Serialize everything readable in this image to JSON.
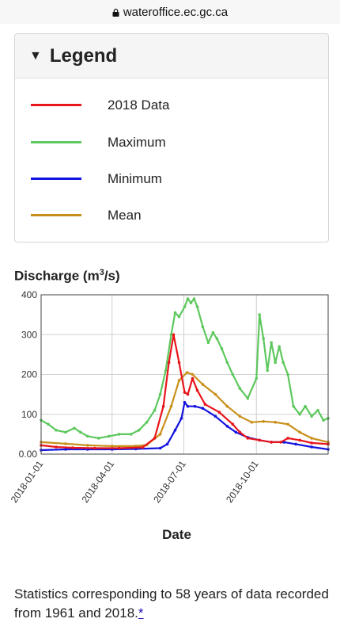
{
  "browser": {
    "url": "wateroffice.ec.gc.ca"
  },
  "legend": {
    "title": "Legend",
    "items": [
      {
        "label": "2018 Data",
        "color": "#e8151b"
      },
      {
        "label": "Maximum",
        "color": "#5dc85d"
      },
      {
        "label": "Minimum",
        "color": "#1414e0"
      },
      {
        "label": "Mean",
        "color": "#c8901a"
      }
    ]
  },
  "chart": {
    "title_prefix": "Discharge (m",
    "title_sup": "3",
    "title_suffix": "/s)",
    "xlabel": "Date"
  },
  "chart_data": {
    "type": "line",
    "title": "Discharge (m3/s)",
    "xlabel": "Date",
    "ylabel": "",
    "ylim": [
      0,
      400
    ],
    "x_range": [
      "2018-01-01",
      "2018-12-31"
    ],
    "yticks": [
      "0.00",
      "100",
      "200",
      "300",
      "400"
    ],
    "xticks": [
      "2018-01-01",
      "2018-04-01",
      "2018-07-01",
      "2018-10-01"
    ],
    "grid": true,
    "series": [
      {
        "name": "Maximum",
        "color": "#5dc85d",
        "points": [
          [
            "2018-01-01",
            85
          ],
          [
            "2018-01-10",
            75
          ],
          [
            "2018-01-20",
            60
          ],
          [
            "2018-02-01",
            55
          ],
          [
            "2018-02-12",
            65
          ],
          [
            "2018-02-20",
            55
          ],
          [
            "2018-03-01",
            45
          ],
          [
            "2018-03-15",
            40
          ],
          [
            "2018-03-28",
            45
          ],
          [
            "2018-04-10",
            50
          ],
          [
            "2018-04-25",
            50
          ],
          [
            "2018-05-05",
            60
          ],
          [
            "2018-05-15",
            80
          ],
          [
            "2018-05-25",
            110
          ],
          [
            "2018-06-01",
            150
          ],
          [
            "2018-06-08",
            210
          ],
          [
            "2018-06-15",
            300
          ],
          [
            "2018-06-20",
            355
          ],
          [
            "2018-06-25",
            345
          ],
          [
            "2018-07-02",
            370
          ],
          [
            "2018-07-06",
            390
          ],
          [
            "2018-07-10",
            380
          ],
          [
            "2018-07-14",
            390
          ],
          [
            "2018-07-18",
            370
          ],
          [
            "2018-07-25",
            320
          ],
          [
            "2018-08-01",
            280
          ],
          [
            "2018-08-07",
            305
          ],
          [
            "2018-08-12",
            290
          ],
          [
            "2018-08-18",
            265
          ],
          [
            "2018-08-25",
            230
          ],
          [
            "2018-09-01",
            200
          ],
          [
            "2018-09-10",
            165
          ],
          [
            "2018-09-20",
            140
          ],
          [
            "2018-10-01",
            190
          ],
          [
            "2018-10-05",
            350
          ],
          [
            "2018-10-10",
            290
          ],
          [
            "2018-10-15",
            210
          ],
          [
            "2018-10-20",
            280
          ],
          [
            "2018-10-25",
            230
          ],
          [
            "2018-10-30",
            270
          ],
          [
            "2018-11-04",
            230
          ],
          [
            "2018-11-10",
            200
          ],
          [
            "2018-11-17",
            120
          ],
          [
            "2018-11-25",
            100
          ],
          [
            "2018-12-02",
            120
          ],
          [
            "2018-12-10",
            95
          ],
          [
            "2018-12-18",
            110
          ],
          [
            "2018-12-25",
            85
          ],
          [
            "2018-12-31",
            90
          ]
        ]
      },
      {
        "name": "Mean",
        "color": "#c8901a",
        "points": [
          [
            "2018-01-01",
            30
          ],
          [
            "2018-02-01",
            26
          ],
          [
            "2018-03-01",
            22
          ],
          [
            "2018-04-01",
            20
          ],
          [
            "2018-05-01",
            20
          ],
          [
            "2018-05-15",
            23
          ],
          [
            "2018-06-01",
            50
          ],
          [
            "2018-06-15",
            120
          ],
          [
            "2018-06-25",
            185
          ],
          [
            "2018-07-05",
            205
          ],
          [
            "2018-07-12",
            200
          ],
          [
            "2018-07-25",
            175
          ],
          [
            "2018-08-10",
            150
          ],
          [
            "2018-08-25",
            120
          ],
          [
            "2018-09-10",
            95
          ],
          [
            "2018-09-25",
            80
          ],
          [
            "2018-10-10",
            82
          ],
          [
            "2018-10-25",
            80
          ],
          [
            "2018-11-10",
            75
          ],
          [
            "2018-11-25",
            55
          ],
          [
            "2018-12-10",
            40
          ],
          [
            "2018-12-31",
            30
          ]
        ]
      },
      {
        "name": "Minimum",
        "color": "#1414e0",
        "points": [
          [
            "2018-01-01",
            10
          ],
          [
            "2018-02-01",
            12
          ],
          [
            "2018-03-01",
            12
          ],
          [
            "2018-04-01",
            12
          ],
          [
            "2018-05-01",
            13
          ],
          [
            "2018-06-01",
            15
          ],
          [
            "2018-06-10",
            25
          ],
          [
            "2018-06-20",
            60
          ],
          [
            "2018-06-28",
            90
          ],
          [
            "2018-07-02",
            130
          ],
          [
            "2018-07-06",
            120
          ],
          [
            "2018-07-15",
            120
          ],
          [
            "2018-07-25",
            115
          ],
          [
            "2018-08-10",
            95
          ],
          [
            "2018-08-25",
            70
          ],
          [
            "2018-09-05",
            55
          ],
          [
            "2018-09-20",
            42
          ],
          [
            "2018-10-05",
            35
          ],
          [
            "2018-10-20",
            30
          ],
          [
            "2018-11-05",
            30
          ],
          [
            "2018-11-20",
            25
          ],
          [
            "2018-12-10",
            18
          ],
          [
            "2018-12-31",
            12
          ]
        ]
      },
      {
        "name": "2018 Data",
        "color": "#e8151b",
        "points": [
          [
            "2018-01-01",
            22
          ],
          [
            "2018-01-20",
            18
          ],
          [
            "2018-02-10",
            16
          ],
          [
            "2018-03-10",
            15
          ],
          [
            "2018-04-10",
            15
          ],
          [
            "2018-05-10",
            17
          ],
          [
            "2018-05-25",
            40
          ],
          [
            "2018-06-05",
            120
          ],
          [
            "2018-06-12",
            230
          ],
          [
            "2018-06-18",
            300
          ],
          [
            "2018-06-25",
            230
          ],
          [
            "2018-07-02",
            155
          ],
          [
            "2018-07-06",
            150
          ],
          [
            "2018-07-12",
            190
          ],
          [
            "2018-07-18",
            160
          ],
          [
            "2018-07-28",
            125
          ],
          [
            "2018-08-15",
            105
          ],
          [
            "2018-09-01",
            75
          ],
          [
            "2018-09-10",
            55
          ],
          [
            "2018-09-20",
            40
          ],
          [
            "2018-10-05",
            35
          ],
          [
            "2018-10-20",
            30
          ],
          [
            "2018-11-01",
            30
          ],
          [
            "2018-11-10",
            40
          ],
          [
            "2018-11-25",
            35
          ],
          [
            "2018-12-10",
            28
          ],
          [
            "2018-12-31",
            25
          ]
        ]
      }
    ]
  },
  "footer": {
    "text": "Statistics corresponding to 58 years of data recorded from 1961 and 2018.",
    "link": "*"
  }
}
